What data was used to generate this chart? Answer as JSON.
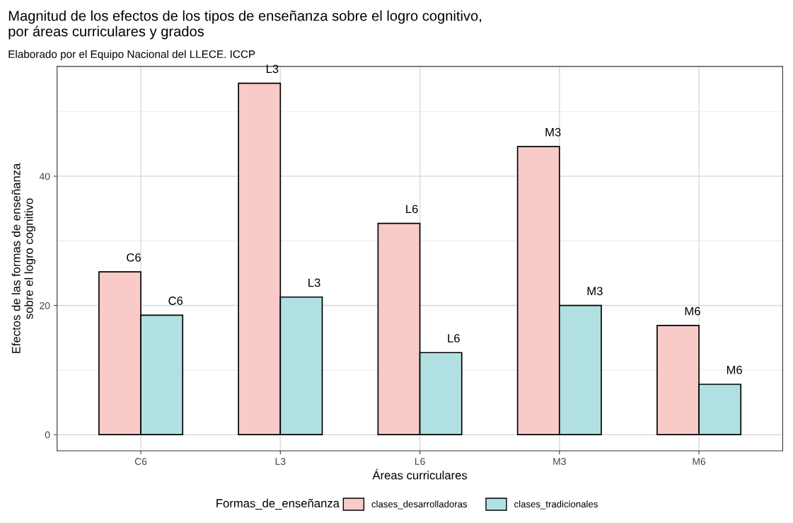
{
  "chart_data": {
    "type": "bar",
    "title": "Magnitud de los efectos de los tipos de enseñanza sobre el logro cognitivo,\npor áreas curriculares y grados",
    "subtitle": "Elaborado por el Equipo Nacional del LLECE. ICCP",
    "xlabel": "Áreas curriculares",
    "ylabel": "Efectos de las formas de enseñanza\nsobre el logro cognitivo",
    "legend_title": "Formas_de_enseñanza",
    "categories": [
      "C6",
      "L3",
      "L6",
      "M3",
      "M6"
    ],
    "series": [
      {
        "name": "clases_desarrolladoras",
        "color": "#f8cbc8",
        "values": [
          25.2,
          54.4,
          32.7,
          44.6,
          16.9
        ]
      },
      {
        "name": "clases_tradicionales",
        "color": "#b0e0e2",
        "values": [
          18.5,
          21.3,
          12.7,
          20.0,
          7.8
        ]
      }
    ],
    "annotations": [
      {
        "text": "C6",
        "x": "C6",
        "y": 25.2
      },
      {
        "text": "L3",
        "x": "L3",
        "y": 54.4
      },
      {
        "text": "L6",
        "x": "L6",
        "y": 32.7
      },
      {
        "text": "M3",
        "x": "M3",
        "y": 44.6
      },
      {
        "text": "M6",
        "x": "M6",
        "y": 16.9
      },
      {
        "text": "C6",
        "x": "C6",
        "y": 18.5
      },
      {
        "text": "L3",
        "x": "L3",
        "y": 21.3
      },
      {
        "text": "L6",
        "x": "L6",
        "y": 12.7
      },
      {
        "text": "M3",
        "x": "M3",
        "y": 20.0
      },
      {
        "text": "M6",
        "x": "M6",
        "y": 7.8
      }
    ],
    "ylim": [
      -2.5,
      57
    ],
    "yticks": [
      0,
      20,
      40
    ],
    "grid": true,
    "legend": "bottom"
  }
}
